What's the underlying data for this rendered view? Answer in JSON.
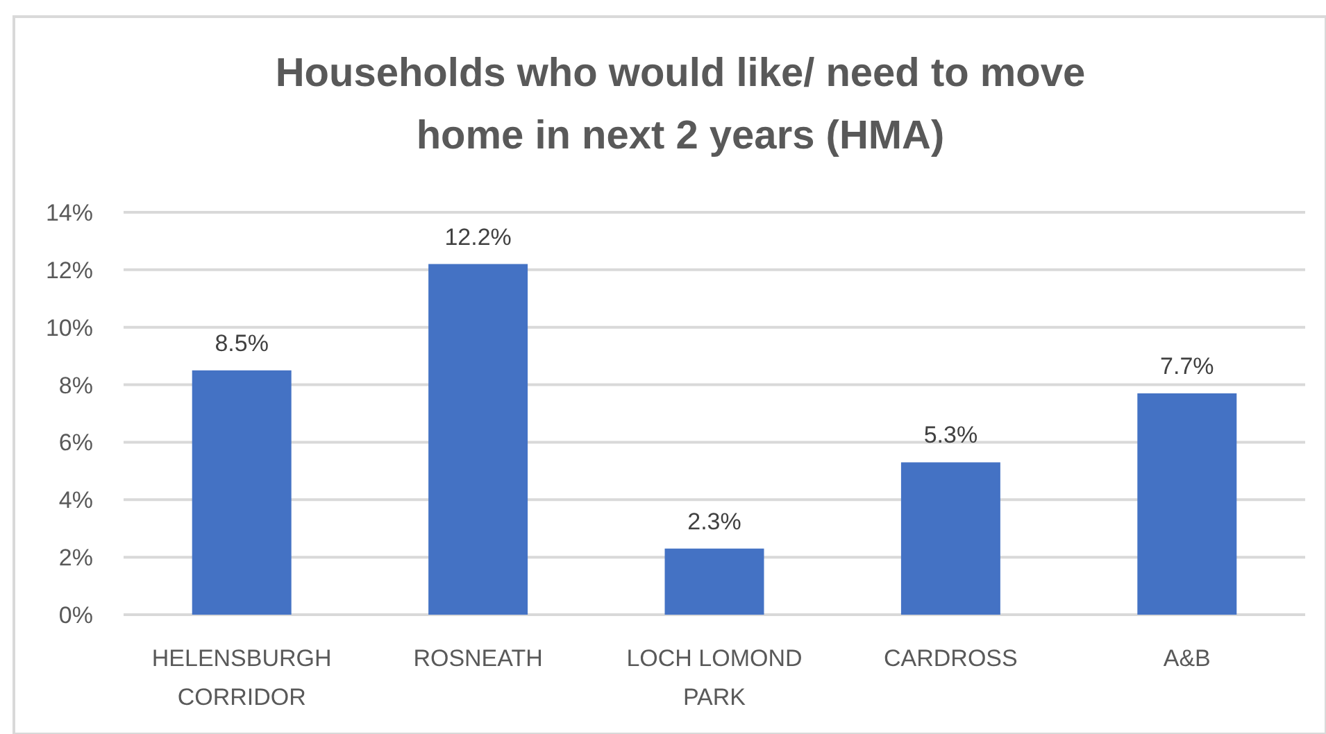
{
  "chart_data": {
    "type": "bar",
    "title": "Households who would like/ need to move home in next 2 years (HMA)",
    "categories": [
      "HELENSBURGH CORRIDOR",
      "ROSNEATH",
      "LOCH LOMOND PARK",
      "CARDROSS",
      "A&B"
    ],
    "values": [
      8.5,
      12.2,
      2.3,
      5.3,
      7.7
    ],
    "color": "#4472c4",
    "value_labels": [
      "8.5%",
      "12.2%",
      "2.3%",
      "5.3%",
      "7.7%"
    ],
    "ylim": [
      0,
      14
    ],
    "yticks": [
      {
        "value": 0,
        "label": "0%"
      },
      {
        "value": 2,
        "label": "2%"
      },
      {
        "value": 4,
        "label": "4%"
      },
      {
        "value": 6,
        "label": "6%"
      },
      {
        "value": 8,
        "label": "8%"
      },
      {
        "value": 10,
        "label": "10%"
      },
      {
        "value": 12,
        "label": "12%"
      },
      {
        "value": 14,
        "label": "14%"
      }
    ],
    "grid": "y"
  }
}
